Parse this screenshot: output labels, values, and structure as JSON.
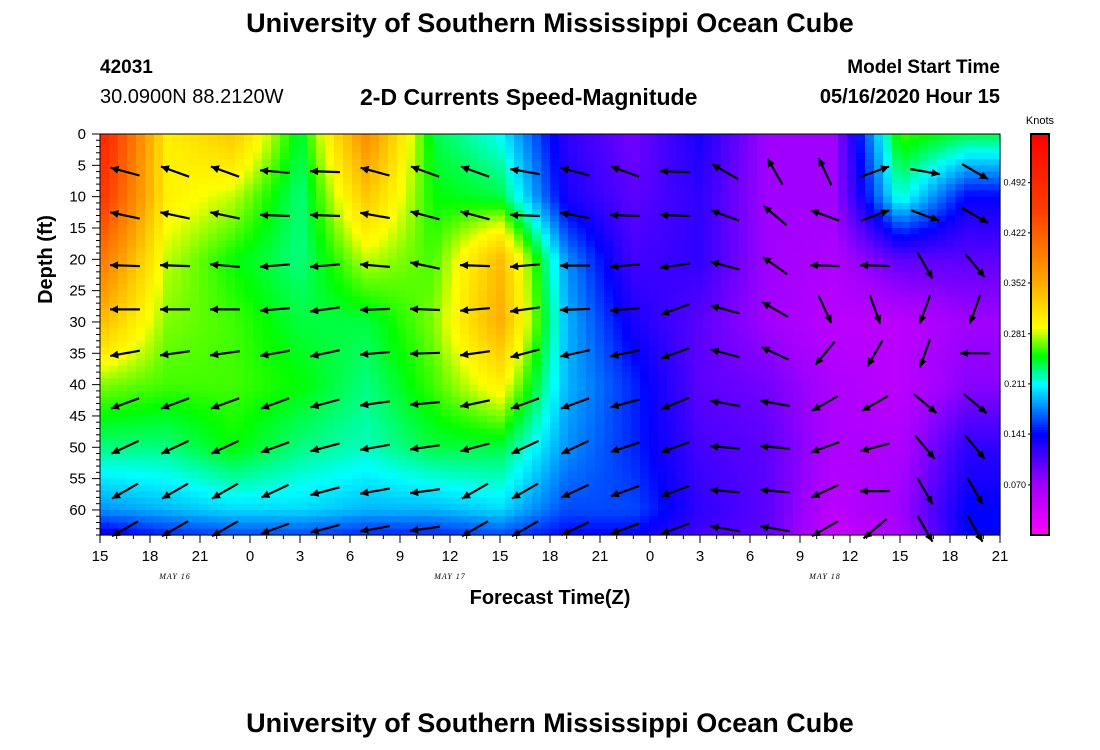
{
  "header": {
    "title": "University of Southern Mississippi Ocean Cube",
    "station_id": "42031",
    "coords": "30.0900N 88.2120W",
    "subtitle": "2-D Currents Speed-Magnitude",
    "model_label": "Model Start Time",
    "model_time": "05/16/2020 Hour 15"
  },
  "footer": {
    "title": "University of Southern Mississippi Ocean Cube"
  },
  "chart_data": {
    "type": "heatmap",
    "title": "2-D Currents Speed-Magnitude",
    "xlabel": "Forecast Time(Z)",
    "ylabel": "Depth (ft)",
    "x_hours_range": [
      0,
      54
    ],
    "x_tick_labels": [
      "15",
      "18",
      "21",
      "0",
      "3",
      "6",
      "9",
      "12",
      "15",
      "18",
      "21",
      "0",
      "3",
      "6",
      "9",
      "12",
      "15",
      "18",
      "21"
    ],
    "date_labels": [
      {
        "label": "MAY 16",
        "hour": 4.5
      },
      {
        "label": "MAY 17",
        "hour": 21
      },
      {
        "label": "MAY 18",
        "hour": 43.5
      }
    ],
    "y_range": [
      0,
      64
    ],
    "y_ticks": [
      0,
      5,
      10,
      15,
      20,
      25,
      30,
      35,
      40,
      45,
      50,
      55,
      60
    ],
    "colorbar": {
      "title": "Knots",
      "range": [
        0,
        0.56
      ],
      "tick_values": [
        0.492,
        0.422,
        0.352,
        0.281,
        0.211,
        0.141,
        0.07
      ],
      "tick_labels": [
        "0.492",
        "0.422",
        "0.352",
        "0.281",
        "0.211",
        "0.141",
        "0.070"
      ]
    },
    "speed_grid": {
      "unit": "knots",
      "depths_ft": [
        0,
        10,
        20,
        30,
        40,
        50,
        60,
        64
      ],
      "hours": [
        0,
        4,
        8,
        12,
        16,
        20,
        24,
        28,
        32,
        36,
        40,
        44,
        48,
        52,
        54
      ],
      "values": [
        [
          0.5,
          0.3,
          0.33,
          0.24,
          0.38,
          0.24,
          0.21,
          0.12,
          0.09,
          0.13,
          0.07,
          0.07,
          0.26,
          0.24,
          0.24
        ],
        [
          0.47,
          0.3,
          0.28,
          0.23,
          0.33,
          0.25,
          0.24,
          0.13,
          0.1,
          0.12,
          0.07,
          0.07,
          0.22,
          0.14,
          0.14
        ],
        [
          0.4,
          0.28,
          0.25,
          0.23,
          0.28,
          0.26,
          0.34,
          0.18,
          0.11,
          0.12,
          0.07,
          0.06,
          0.1,
          0.1,
          0.1
        ],
        [
          0.34,
          0.27,
          0.26,
          0.24,
          0.24,
          0.27,
          0.35,
          0.19,
          0.13,
          0.1,
          0.07,
          0.05,
          0.05,
          0.07,
          0.07
        ],
        [
          0.27,
          0.26,
          0.26,
          0.25,
          0.23,
          0.26,
          0.3,
          0.19,
          0.15,
          0.1,
          0.09,
          0.06,
          0.05,
          0.08,
          0.08
        ],
        [
          0.23,
          0.23,
          0.25,
          0.23,
          0.22,
          0.24,
          0.24,
          0.18,
          0.15,
          0.11,
          0.1,
          0.06,
          0.06,
          0.12,
          0.12
        ],
        [
          0.18,
          0.19,
          0.2,
          0.2,
          0.19,
          0.19,
          0.2,
          0.16,
          0.16,
          0.12,
          0.1,
          0.05,
          0.07,
          0.14,
          0.14
        ],
        [
          0.13,
          0.15,
          0.16,
          0.16,
          0.15,
          0.15,
          0.16,
          0.14,
          0.14,
          0.11,
          0.1,
          0.04,
          0.06,
          0.14,
          0.14
        ]
      ]
    },
    "vector_grid": {
      "hours": [
        1.5,
        4.5,
        7.5,
        10.5,
        13.5,
        16.5,
        19.5,
        22.5,
        25.5,
        28.5,
        31.5,
        34.5,
        37.5,
        40.5,
        43.5,
        46.5,
        49.5,
        52.5
      ],
      "depths_ft": [
        6,
        13,
        21,
        28,
        35,
        43,
        50,
        57,
        63
      ],
      "directions_deg": [
        [
          285,
          290,
          290,
          275,
          272,
          285,
          290,
          290,
          280,
          285,
          290,
          272,
          300,
          330,
          335,
          70,
          100,
          120
        ],
        [
          282,
          282,
          282,
          272,
          272,
          280,
          285,
          285,
          272,
          280,
          272,
          272,
          290,
          310,
          290,
          70,
          110,
          120
        ],
        [
          272,
          272,
          275,
          265,
          265,
          275,
          282,
          272,
          265,
          270,
          265,
          262,
          285,
          305,
          272,
          272,
          150,
          140
        ],
        [
          270,
          270,
          270,
          265,
          262,
          268,
          272,
          265,
          262,
          268,
          265,
          250,
          285,
          300,
          155,
          160,
          200,
          200
        ],
        [
          260,
          262,
          262,
          260,
          258,
          265,
          268,
          262,
          255,
          258,
          258,
          250,
          285,
          295,
          220,
          210,
          200,
          270
        ],
        [
          250,
          250,
          250,
          250,
          255,
          262,
          265,
          258,
          250,
          250,
          255,
          248,
          280,
          280,
          240,
          240,
          130,
          130
        ],
        [
          245,
          245,
          245,
          250,
          255,
          260,
          262,
          255,
          245,
          245,
          252,
          250,
          275,
          275,
          250,
          255,
          140,
          140
        ],
        [
          240,
          240,
          240,
          245,
          255,
          260,
          262,
          240,
          240,
          245,
          250,
          250,
          275,
          275,
          245,
          270,
          150,
          150
        ],
        [
          240,
          240,
          240,
          250,
          255,
          260,
          262,
          240,
          240,
          245,
          250,
          250,
          280,
          280,
          240,
          230,
          150,
          150
        ]
      ]
    }
  }
}
